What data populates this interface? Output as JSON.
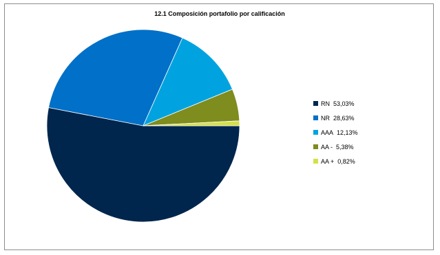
{
  "chart_data": {
    "type": "pie",
    "title": "12.1 Composición portafolio por calificación",
    "slices": [
      {
        "name": "RN",
        "value": 53.03,
        "value_label": "53,03%",
        "color": "#00264d"
      },
      {
        "name": "NR",
        "value": 28.63,
        "value_label": "28,63%",
        "color": "#0070c8"
      },
      {
        "name": "AAA",
        "value": 12.13,
        "value_label": "12,13%",
        "color": "#00a3e0"
      },
      {
        "name": "AA -",
        "value": 5.38,
        "value_label": "5,38%",
        "color": "#7f8c1e"
      },
      {
        "name": "AA +",
        "value": 0.82,
        "value_label": "0,82%",
        "color": "#d4e04a"
      }
    ],
    "legend_position": "right"
  }
}
